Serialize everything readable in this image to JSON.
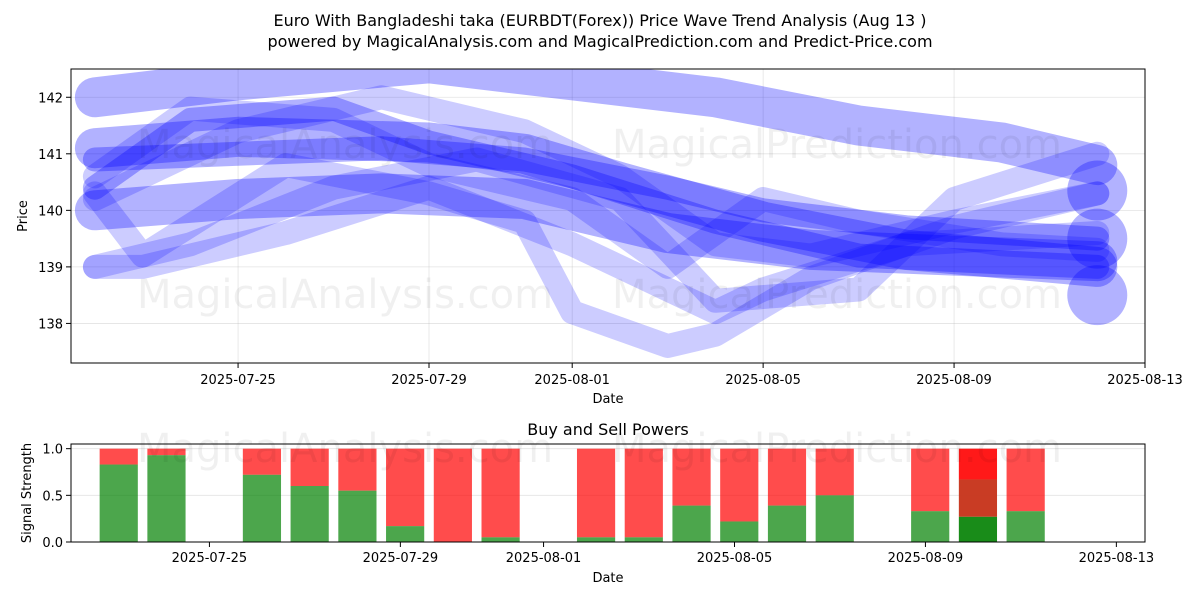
{
  "title_line1": "Euro With Bangladeshi taka (EURBDT(Forex)) Price Wave Trend Analysis (Aug 13 )",
  "title_line2": "powered by MagicalAnalysis.com and MagicalPrediction.com and Predict-Price.com",
  "watermarks": [
    "MagicalAnalysis.com",
    "MagicalPrediction.com"
  ],
  "colors": {
    "wave": "#0000ff",
    "buy": "#008000",
    "sell": "#ff0000"
  },
  "chart_data": [
    {
      "type": "line",
      "title": "",
      "xlabel": "Date",
      "ylabel": "Price",
      "xlim": [
        "2025-07-21T12",
        "2025-08-13"
      ],
      "ylim": [
        137.3,
        142.5
      ],
      "x_ticks": [
        "2025-07-25",
        "2025-07-29",
        "2025-08-01",
        "2025-08-05",
        "2025-08-09",
        "2025-08-13"
      ],
      "y_ticks": [
        138,
        139,
        140,
        141,
        142
      ],
      "grid": true,
      "series": [
        {
          "x": [
            "2025-07-22",
            "2025-07-25",
            "2025-07-29",
            "2025-08-01",
            "2025-08-04",
            "2025-08-07",
            "2025-08-10",
            "2025-08-12"
          ],
          "values": [
            142.0,
            142.3,
            142.6,
            142.3,
            142.0,
            141.5,
            141.2,
            140.8
          ],
          "alpha": 0.3,
          "width": 40
        },
        {
          "x": [
            "2025-07-22",
            "2025-07-25",
            "2025-07-29",
            "2025-07-31",
            "2025-08-02",
            "2025-08-05",
            "2025-08-08",
            "2025-08-12"
          ],
          "values": [
            141.1,
            141.3,
            141.2,
            141.0,
            140.5,
            139.8,
            139.3,
            139.0
          ],
          "alpha": 0.3,
          "width": 40
        },
        {
          "x": [
            "2025-07-22",
            "2025-07-25",
            "2025-07-28",
            "2025-07-31",
            "2025-08-03",
            "2025-08-06",
            "2025-08-09",
            "2025-08-12"
          ],
          "values": [
            140.0,
            140.2,
            140.3,
            140.2,
            139.6,
            139.3,
            139.2,
            139.1
          ],
          "alpha": 0.3,
          "width": 40
        },
        {
          "x": [
            "2025-07-22",
            "2025-07-25",
            "2025-07-28",
            "2025-07-31",
            "2025-08-03",
            "2025-08-05",
            "2025-08-08",
            "2025-08-12"
          ],
          "values": [
            140.9,
            141.0,
            141.1,
            140.9,
            140.4,
            140.0,
            139.7,
            139.5
          ],
          "alpha": 0.3,
          "width": 24
        },
        {
          "x": [
            "2025-07-22",
            "2025-07-24",
            "2025-07-27",
            "2025-07-29",
            "2025-08-01",
            "2025-08-04",
            "2025-08-07",
            "2025-08-12"
          ],
          "values": [
            140.4,
            141.6,
            141.8,
            141.2,
            140.6,
            139.8,
            139.2,
            139.0
          ],
          "alpha": 0.3,
          "width": 24
        },
        {
          "x": [
            "2025-07-22",
            "2025-07-23",
            "2025-07-26",
            "2025-07-29",
            "2025-07-31",
            "2025-08-01",
            "2025-08-03",
            "2025-08-04",
            "2025-08-06",
            "2025-08-09",
            "2025-08-12"
          ],
          "values": [
            140.3,
            139.2,
            140.8,
            140.3,
            139.8,
            138.2,
            137.6,
            137.8,
            138.8,
            139.7,
            140.3
          ],
          "alpha": 0.2,
          "width": 24
        },
        {
          "x": [
            "2025-07-22",
            "2025-07-23",
            "2025-07-26",
            "2025-07-29",
            "2025-08-01",
            "2025-08-03",
            "2025-08-04",
            "2025-08-05",
            "2025-08-08",
            "2025-08-12"
          ],
          "values": [
            139.0,
            139.0,
            139.6,
            140.4,
            139.4,
            138.6,
            138.2,
            138.6,
            139.4,
            139.6
          ],
          "alpha": 0.2,
          "width": 24
        },
        {
          "x": [
            "2025-07-22",
            "2025-07-24",
            "2025-07-27",
            "2025-07-29",
            "2025-08-01",
            "2025-08-03",
            "2025-08-05",
            "2025-08-07",
            "2025-08-10",
            "2025-08-12"
          ],
          "values": [
            140.6,
            141.8,
            141.6,
            140.8,
            140.2,
            139.0,
            140.2,
            139.8,
            139.4,
            139.3
          ],
          "alpha": 0.2,
          "width": 24
        },
        {
          "x": [
            "2025-07-22",
            "2025-07-24",
            "2025-07-27",
            "2025-07-30",
            "2025-08-02",
            "2025-08-04",
            "2025-08-07",
            "2025-08-09",
            "2025-08-12"
          ],
          "values": [
            139.0,
            139.4,
            140.4,
            140.9,
            140.2,
            138.4,
            138.6,
            140.2,
            141.0
          ],
          "alpha": 0.2,
          "width": 24
        },
        {
          "x": [
            "2025-07-22",
            "2025-07-25",
            "2025-07-28",
            "2025-07-31",
            "2025-08-02",
            "2025-08-04",
            "2025-08-06",
            "2025-08-09",
            "2025-08-12"
          ],
          "values": [
            140.2,
            141.4,
            142.0,
            141.4,
            140.6,
            139.4,
            139.2,
            139.8,
            140.3
          ],
          "alpha": 0.2,
          "width": 24
        }
      ],
      "end_markers": [
        {
          "x": "2025-08-12",
          "value": 140.35
        },
        {
          "x": "2025-08-12",
          "value": 139.5
        },
        {
          "x": "2025-08-12",
          "value": 138.5
        }
      ]
    },
    {
      "type": "bar",
      "title": "Buy and Sell Powers",
      "xlabel": "Date",
      "ylabel": "Signal Strength",
      "xlim": [
        "2025-07-21T12",
        "2025-08-13"
      ],
      "ylim": [
        0,
        1.05
      ],
      "x_ticks": [
        "2025-07-25",
        "2025-07-29",
        "2025-08-01",
        "2025-08-05",
        "2025-08-09",
        "2025-08-13"
      ],
      "y_ticks": [
        0.0,
        0.5,
        1.0
      ],
      "legend": "none",
      "bars": [
        {
          "date": "2025-07-23",
          "buy": 0.83
        },
        {
          "date": "2025-07-24",
          "buy": 0.93
        },
        {
          "date": "2025-07-26",
          "buy": 0.72
        },
        {
          "date": "2025-07-27",
          "buy": 0.6
        },
        {
          "date": "2025-07-28",
          "buy": 0.55
        },
        {
          "date": "2025-07-29",
          "buy": 0.17
        },
        {
          "date": "2025-07-30",
          "buy": 0.0
        },
        {
          "date": "2025-07-31",
          "buy": 0.05
        },
        {
          "date": "2025-08-02",
          "buy": 0.05
        },
        {
          "date": "2025-08-03",
          "buy": 0.05
        },
        {
          "date": "2025-08-04",
          "buy": 0.39
        },
        {
          "date": "2025-08-05",
          "buy": 0.22
        },
        {
          "date": "2025-08-06",
          "buy": 0.39
        },
        {
          "date": "2025-08-07",
          "buy": 0.5
        },
        {
          "date": "2025-08-09",
          "buy": 0.33
        },
        {
          "date": "2025-08-10",
          "buy": 0.27,
          "highlight": true
        },
        {
          "date": "2025-08-11",
          "buy": 0.33
        }
      ]
    }
  ]
}
